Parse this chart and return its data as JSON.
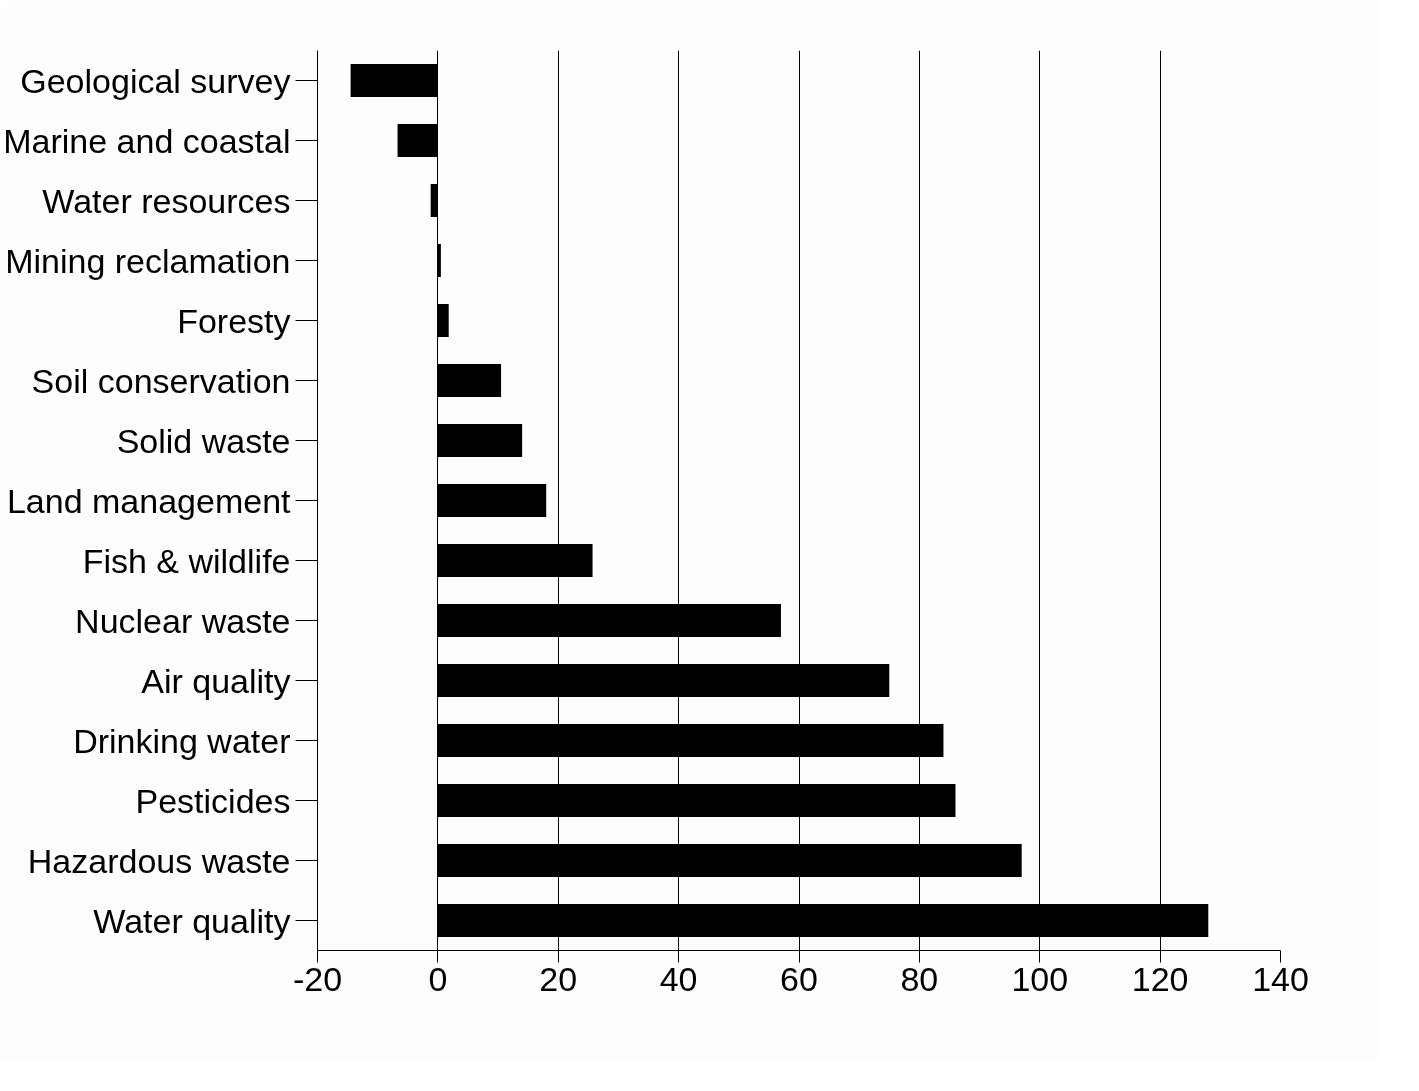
{
  "chart_data": {
    "type": "bar",
    "orientation": "horizontal",
    "categories": [
      "Geological survey",
      "Marine and coastal",
      "Water resources",
      "Mining reclamation",
      "Foresty",
      "Soil conservation",
      "Solid waste",
      "Land management",
      "Fish & wildlife",
      "Nuclear waste",
      "Air quality",
      "Drinking water",
      "Pesticides",
      "Hazardous waste",
      "Water quality"
    ],
    "values": [
      -14.5,
      -6.7,
      -1.2,
      0.5,
      1.8,
      10.5,
      14,
      18,
      25.7,
      57,
      75,
      84,
      86,
      97,
      128
    ],
    "color": "#000000",
    "xlim": [
      -20,
      140
    ],
    "xticks": [
      {
        "value": -20,
        "label": "-20"
      },
      0,
      20,
      40,
      60,
      80,
      100,
      120,
      140
    ],
    "grid": "x"
  }
}
